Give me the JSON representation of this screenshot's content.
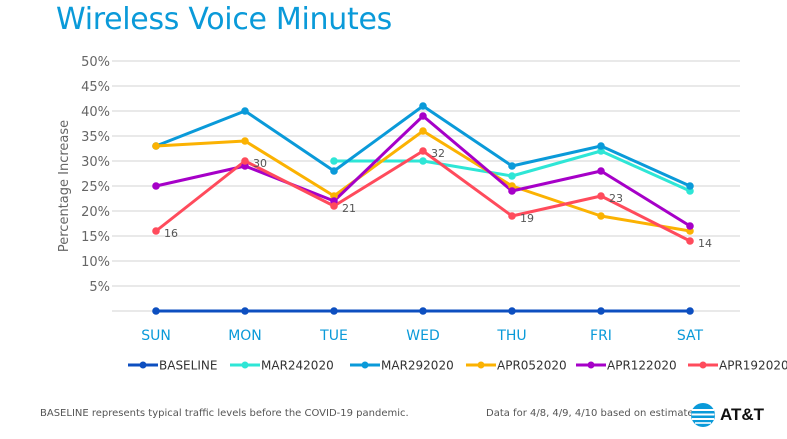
{
  "header": {
    "title": "Wireless Voice Minutes"
  },
  "chart_data": {
    "type": "line",
    "title": "Wireless Voice Minutes",
    "xlabel": "",
    "ylabel": "Percentage Increase",
    "ylim": [
      0,
      50
    ],
    "yticks": [
      5,
      10,
      15,
      20,
      25,
      30,
      35,
      40,
      45,
      50
    ],
    "ytick_labels": [
      "5%",
      "10%",
      "15%",
      "20%",
      "25%",
      "30%",
      "35%",
      "40%",
      "45%",
      "50%"
    ],
    "grid": true,
    "legend_position": "bottom",
    "categories": [
      "SUN",
      "MON",
      "TUE",
      "WED",
      "THU",
      "FRI",
      "SAT"
    ],
    "series": [
      {
        "name": "BASELINE",
        "color": "#0d4fc0",
        "values": [
          0,
          0,
          0,
          0,
          0,
          0,
          0
        ]
      },
      {
        "name": "MAR242020",
        "color": "#2ee6d6",
        "values": [
          null,
          null,
          30,
          30,
          27,
          32,
          24
        ]
      },
      {
        "name": "MAR292020",
        "color": "#0a9ad9",
        "values": [
          33,
          40,
          28,
          41,
          29,
          33,
          25
        ]
      },
      {
        "name": "APR052020",
        "color": "#fbb202",
        "values": [
          33,
          34,
          23,
          36,
          25,
          19,
          16
        ]
      },
      {
        "name": "APR122020",
        "color": "#a600c8",
        "values": [
          25,
          29,
          22,
          39,
          24,
          28,
          17
        ]
      },
      {
        "name": "APR192020",
        "color": "#ff4b5c",
        "values": [
          16,
          30,
          21,
          32,
          19,
          23,
          14
        ],
        "show_labels": true
      }
    ]
  },
  "footer": {
    "note_left": "BASELINE represents  typical traffic levels before the COVID-19 pandemic.",
    "note_right": "Data for 4/8, 4/9, 4/10 based on estimates.",
    "brand": "AT&T"
  }
}
